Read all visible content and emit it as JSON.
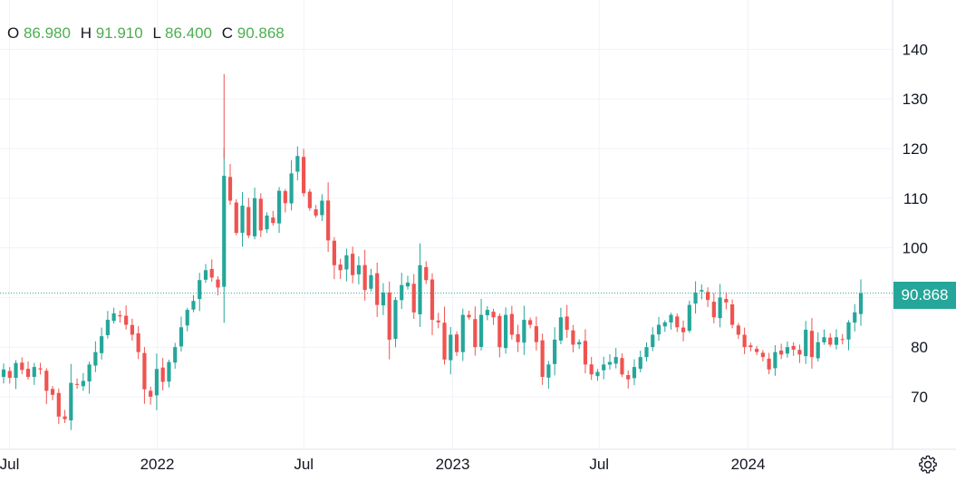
{
  "legend": {
    "o_label": "O",
    "o": "86.980",
    "h_label": "H",
    "h": "91.910",
    "l_label": "L",
    "l": "86.400",
    "c_label": "C",
    "c": "90.868"
  },
  "last_price_label": "90.868",
  "colors": {
    "up": "#26a69a",
    "down": "#ef5350",
    "legend_value": "#4caf50",
    "grid": "#f0f3fa",
    "text": "#131722",
    "axis_line": "#e0e3eb"
  },
  "settings_icon": "gear-icon",
  "chart_data": {
    "type": "candlestick",
    "title": "",
    "ylim": [
      60,
      150
    ],
    "y_ticks": [
      70,
      80,
      90,
      100,
      110,
      120,
      130,
      140
    ],
    "x_range": [
      2021.48,
      2024.47
    ],
    "x_ticks": [
      {
        "label": "Jul",
        "t": 2021.5
      },
      {
        "label": "2022",
        "t": 2022.0
      },
      {
        "label": "Jul",
        "t": 2022.496
      },
      {
        "label": "2023",
        "t": 2023.0
      },
      {
        "label": "Jul",
        "t": 2023.496
      },
      {
        "label": "2024",
        "t": 2024.0
      }
    ],
    "last_price": 90.868,
    "close_prices": [
      75.5,
      73.8,
      76.8,
      75.4,
      74.0,
      76.0,
      75.5,
      71.2,
      70.4,
      66.0,
      65.5,
      72.8,
      72.4,
      73.2,
      76.5,
      79.0,
      82.2,
      85.5,
      86.8,
      86.2,
      84.5,
      82.5,
      79.0,
      71.5,
      70.0,
      75.6,
      73.0,
      77.0,
      80.0,
      84.0,
      87.5,
      89.3,
      93.5,
      95.5,
      94.0,
      92.0,
      114.5,
      109.5,
      103.0,
      108.5,
      102.5,
      110.0,
      103.5,
      106.5,
      105.0,
      111.5,
      109.0,
      115.0,
      118.5,
      111.0,
      108.0,
      106.5,
      109.5,
      101.5,
      96.5,
      95.5,
      98.5,
      94.5,
      96.5,
      91.5,
      94.5,
      88.5,
      91.0,
      81.5,
      89.5,
      92.5,
      93.0,
      87.0,
      96.5,
      93.5,
      85.5,
      85.0,
      77.5,
      82.5,
      79.0,
      86.5,
      86.0,
      80.0,
      86.5,
      87.5,
      86.0,
      80.0,
      86.5,
      82.5,
      81.0,
      85.5,
      84.5,
      81.0,
      74.0,
      76.5,
      81.5,
      86.0,
      83.5,
      80.5,
      81.0,
      76.5,
      74.5,
      75.0,
      76.5,
      77.0,
      78.0,
      74.5,
      73.5,
      76.0,
      78.0,
      80.0,
      82.5,
      84.5,
      85.0,
      86.5,
      84.0,
      83.0,
      88.5,
      91.0,
      91.5,
      89.5,
      86.0,
      90.0,
      89.0,
      84.5,
      82.5,
      80.0,
      80.0,
      79.0,
      78.0,
      75.5,
      79.0,
      78.5,
      80.0,
      79.5,
      78.5,
      83.5,
      78.0,
      81.0,
      82.0,
      80.5,
      82.0,
      81.5,
      85.0,
      87.0,
      90.868
    ]
  }
}
